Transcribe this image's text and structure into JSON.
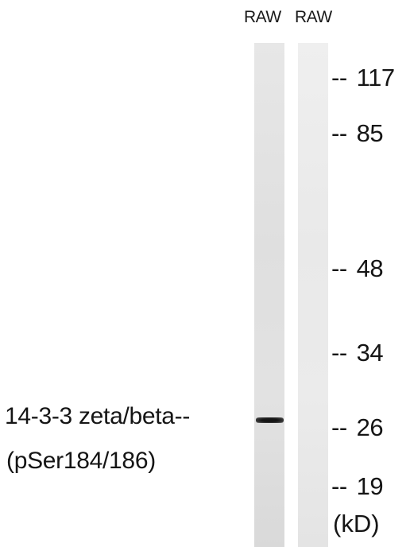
{
  "lanes": [
    {
      "label": "RAW"
    },
    {
      "label": "RAW"
    }
  ],
  "markers": [
    {
      "dash": "--",
      "value": "117"
    },
    {
      "dash": "--",
      "value": "85"
    },
    {
      "dash": "--",
      "value": "48"
    },
    {
      "dash": "--",
      "value": "34"
    },
    {
      "dash": "--",
      "value": "26"
    },
    {
      "dash": "--",
      "value": "19"
    }
  ],
  "unit": "(kD)",
  "protein": {
    "name": "14-3-3 zeta/beta--",
    "modification": "(pSer184/186)"
  }
}
